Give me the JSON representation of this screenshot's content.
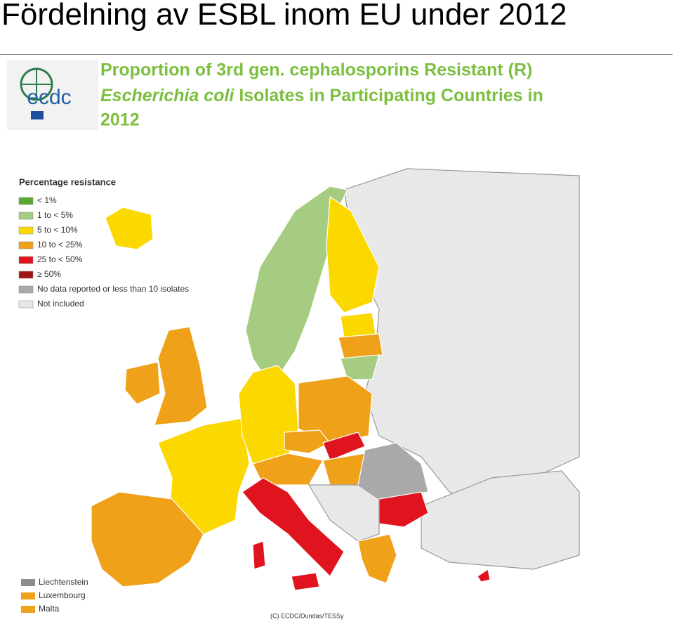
{
  "slide_title": "Fördelning av ESBL inom EU under 2012",
  "logo": {
    "text": "ecdc"
  },
  "header": {
    "line1": "Proportion of 3rd gen. cephalosporins Resistant (R)",
    "line2_italic": "Escherichia coli",
    "line2_rest": " Isolates in Participating Countries in",
    "line3": "2012"
  },
  "legend": {
    "title": "Percentage resistance",
    "items": [
      {
        "label": "< 1%",
        "color": "#5aa832"
      },
      {
        "label": "1 to < 5%",
        "color": "#a6cc82"
      },
      {
        "label": "5 to < 10%",
        "color": "#fad800"
      },
      {
        "label": "10 to < 25%",
        "color": "#f0a11a"
      },
      {
        "label": "25 to < 50%",
        "color": "#e0141e"
      },
      {
        "label": "≥ 50%",
        "color": "#a01414"
      },
      {
        "label": "No data reported or less than 10 isolates",
        "color": "#a9a9a9"
      },
      {
        "label": "Not included",
        "color": "#e8e8e8"
      }
    ]
  },
  "small_countries": [
    {
      "label": "Liechtenstein",
      "color": "#8c8c8c"
    },
    {
      "label": "Luxembourg",
      "color": "#f0a11a"
    },
    {
      "label": "Malta",
      "color": "#f0a11a"
    }
  ],
  "credit": "(C) ECDC/Dundas/TESSy"
}
